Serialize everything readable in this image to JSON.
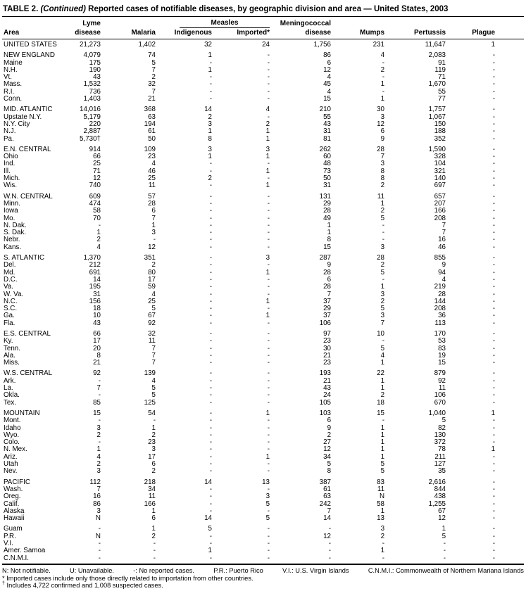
{
  "title": {
    "part1": "TABLE 2. ",
    "continued": "(Continued)",
    "part2": " Reported cases of notifiable diseases, by geographic division and area — United States, 2003"
  },
  "table": {
    "header": {
      "area": "Area",
      "lyme_top": "Lyme",
      "lyme_bottom": "disease",
      "malaria": "Malaria",
      "measles": "Measles",
      "indigenous": "Indigenous",
      "imported": "Imported*",
      "mening_top": "Meningococcal",
      "mening_bottom": "disease",
      "mumps": "Mumps",
      "pertussis": "Pertussis",
      "plague": "Plague"
    },
    "groups": [
      {
        "rows": [
          {
            "area": "UNITED STATES",
            "values": [
              "21,273",
              "1,402",
              "32",
              "24",
              "1,756",
              "231",
              "11,647",
              "1"
            ]
          }
        ]
      },
      {
        "rows": [
          {
            "area": "NEW ENGLAND",
            "values": [
              "4,079",
              "74",
              "1",
              "-",
              "86",
              "4",
              "2,083",
              "-"
            ]
          },
          {
            "area": "Maine",
            "values": [
              "175",
              "5",
              "-",
              "-",
              "6",
              "-",
              "91",
              "-"
            ]
          },
          {
            "area": "N.H.",
            "values": [
              "190",
              "7",
              "1",
              "-",
              "12",
              "2",
              "119",
              "-"
            ]
          },
          {
            "area": "Vt.",
            "values": [
              "43",
              "2",
              "-",
              "-",
              "4",
              "-",
              "71",
              "-"
            ]
          },
          {
            "area": "Mass.",
            "values": [
              "1,532",
              "32",
              "-",
              "-",
              "45",
              "1",
              "1,670",
              "-"
            ]
          },
          {
            "area": "R.I.",
            "values": [
              "736",
              "7",
              "-",
              "-",
              "4",
              "-",
              "55",
              "-"
            ]
          },
          {
            "area": "Conn.",
            "values": [
              "1,403",
              "21",
              "-",
              "-",
              "15",
              "1",
              "77",
              "-"
            ]
          }
        ]
      },
      {
        "rows": [
          {
            "area": "MID. ATLANTIC",
            "values": [
              "14,016",
              "368",
              "14",
              "4",
              "210",
              "30",
              "1,757",
              "-"
            ]
          },
          {
            "area": "Upstate N.Y.",
            "values": [
              "5,179",
              "63",
              "2",
              "-",
              "55",
              "3",
              "1,067",
              "-"
            ]
          },
          {
            "area": "N.Y. City",
            "values": [
              "220",
              "194",
              "3",
              "2",
              "43",
              "12",
              "150",
              "-"
            ]
          },
          {
            "area": "N.J.",
            "values": [
              "2,887",
              "61",
              "1",
              "1",
              "31",
              "6",
              "188",
              "-"
            ]
          },
          {
            "area": "Pa.",
            "values": [
              "5,730†",
              "50",
              "8",
              "1",
              "81",
              "9",
              "352",
              "-"
            ]
          }
        ]
      },
      {
        "rows": [
          {
            "area": "E.N. CENTRAL",
            "values": [
              "914",
              "109",
              "3",
              "3",
              "262",
              "28",
              "1,590",
              "-"
            ]
          },
          {
            "area": "Ohio",
            "values": [
              "66",
              "23",
              "1",
              "1",
              "60",
              "7",
              "328",
              "-"
            ]
          },
          {
            "area": "Ind.",
            "values": [
              "25",
              "4",
              "-",
              "-",
              "48",
              "3",
              "104",
              "-"
            ]
          },
          {
            "area": "Ill.",
            "values": [
              "71",
              "46",
              "-",
              "1",
              "73",
              "8",
              "321",
              "-"
            ]
          },
          {
            "area": "Mich.",
            "values": [
              "12",
              "25",
              "2",
              "-",
              "50",
              "8",
              "140",
              "-"
            ]
          },
          {
            "area": "Wis.",
            "values": [
              "740",
              "11",
              "-",
              "1",
              "31",
              "2",
              "697",
              "-"
            ]
          }
        ]
      },
      {
        "rows": [
          {
            "area": "W.N. CENTRAL",
            "values": [
              "609",
              "57",
              "-",
              "-",
              "131",
              "11",
              "657",
              "-"
            ]
          },
          {
            "area": "Minn.",
            "values": [
              "474",
              "28",
              "-",
              "-",
              "29",
              "1",
              "207",
              "-"
            ]
          },
          {
            "area": "Iowa",
            "values": [
              "58",
              "6",
              "-",
              "-",
              "28",
              "2",
              "166",
              "-"
            ]
          },
          {
            "area": "Mo.",
            "values": [
              "70",
              "7",
              "-",
              "-",
              "49",
              "5",
              "208",
              "-"
            ]
          },
          {
            "area": "N. Dak.",
            "values": [
              "-",
              "1",
              "-",
              "-",
              "1",
              "-",
              "7",
              "-"
            ]
          },
          {
            "area": "S. Dak.",
            "values": [
              "1",
              "3",
              "-",
              "-",
              "1",
              "-",
              "7",
              "-"
            ]
          },
          {
            "area": "Nebr.",
            "values": [
              "2",
              "-",
              "-",
              "-",
              "8",
              "-",
              "16",
              "-"
            ]
          },
          {
            "area": "Kans.",
            "values": [
              "4",
              "12",
              "-",
              "-",
              "15",
              "3",
              "46",
              "-"
            ]
          }
        ]
      },
      {
        "rows": [
          {
            "area": "S. ATLANTIC",
            "values": [
              "1,370",
              "351",
              "-",
              "3",
              "287",
              "28",
              "855",
              "-"
            ]
          },
          {
            "area": "Del.",
            "values": [
              "212",
              "2",
              "-",
              "-",
              "9",
              "2",
              "9",
              "-"
            ]
          },
          {
            "area": "Md.",
            "values": [
              "691",
              "80",
              "-",
              "1",
              "28",
              "5",
              "94",
              "-"
            ]
          },
          {
            "area": "D.C.",
            "values": [
              "14",
              "17",
              "-",
              "-",
              "6",
              "-",
              "4",
              "-"
            ]
          },
          {
            "area": "Va.",
            "values": [
              "195",
              "59",
              "-",
              "-",
              "28",
              "1",
              "219",
              "-"
            ]
          },
          {
            "area": "W. Va.",
            "values": [
              "31",
              "4",
              "-",
              "-",
              "7",
              "3",
              "28",
              "-"
            ]
          },
          {
            "area": "N.C.",
            "values": [
              "156",
              "25",
              "-",
              "1",
              "37",
              "2",
              "144",
              "-"
            ]
          },
          {
            "area": "S.C.",
            "values": [
              "18",
              "5",
              "-",
              "-",
              "29",
              "5",
              "208",
              "-"
            ]
          },
          {
            "area": "Ga.",
            "values": [
              "10",
              "67",
              "-",
              "1",
              "37",
              "3",
              "36",
              "-"
            ]
          },
          {
            "area": "Fla.",
            "values": [
              "43",
              "92",
              "-",
              "-",
              "106",
              "7",
              "113",
              "-"
            ]
          }
        ]
      },
      {
        "rows": [
          {
            "area": "E.S. CENTRAL",
            "values": [
              "66",
              "32",
              "-",
              "-",
              "97",
              "10",
              "170",
              "-"
            ]
          },
          {
            "area": "Ky.",
            "values": [
              "17",
              "11",
              "-",
              "-",
              "23",
              "-",
              "53",
              "-"
            ]
          },
          {
            "area": "Tenn.",
            "values": [
              "20",
              "7",
              "-",
              "-",
              "30",
              "5",
              "83",
              "-"
            ]
          },
          {
            "area": "Ala.",
            "values": [
              "8",
              "7",
              "-",
              "-",
              "21",
              "4",
              "19",
              "-"
            ]
          },
          {
            "area": "Miss.",
            "values": [
              "21",
              "7",
              "-",
              "-",
              "23",
              "1",
              "15",
              "-"
            ]
          }
        ]
      },
      {
        "rows": [
          {
            "area": "W.S. CENTRAL",
            "values": [
              "92",
              "139",
              "-",
              "-",
              "193",
              "22",
              "879",
              "-"
            ]
          },
          {
            "area": "Ark.",
            "values": [
              "-",
              "4",
              "-",
              "-",
              "21",
              "1",
              "92",
              "-"
            ]
          },
          {
            "area": "La.",
            "values": [
              "7",
              "5",
              "-",
              "-",
              "43",
              "1",
              "11",
              "-"
            ]
          },
          {
            "area": "Okla.",
            "values": [
              "-",
              "5",
              "-",
              "-",
              "24",
              "2",
              "106",
              "-"
            ]
          },
          {
            "area": "Tex.",
            "values": [
              "85",
              "125",
              "-",
              "-",
              "105",
              "18",
              "670",
              "-"
            ]
          }
        ]
      },
      {
        "rows": [
          {
            "area": "MOUNTAIN",
            "values": [
              "15",
              "54",
              "-",
              "1",
              "103",
              "15",
              "1,040",
              "1"
            ]
          },
          {
            "area": "Mont.",
            "values": [
              "-",
              "-",
              "-",
              "-",
              "6",
              "-",
              "5",
              "-"
            ]
          },
          {
            "area": "Idaho",
            "values": [
              "3",
              "1",
              "-",
              "-",
              "9",
              "1",
              "82",
              "-"
            ]
          },
          {
            "area": "Wyo.",
            "values": [
              "2",
              "2",
              "-",
              "-",
              "2",
              "1",
              "130",
              "-"
            ]
          },
          {
            "area": "Colo.",
            "values": [
              "-",
              "23",
              "-",
              "-",
              "27",
              "1",
              "372",
              "-"
            ]
          },
          {
            "area": "N. Mex.",
            "values": [
              "1",
              "3",
              "-",
              "-",
              "12",
              "1",
              "78",
              "1"
            ]
          },
          {
            "area": "Ariz.",
            "values": [
              "4",
              "17",
              "-",
              "1",
              "34",
              "1",
              "211",
              "-"
            ]
          },
          {
            "area": "Utah",
            "values": [
              "2",
              "6",
              "-",
              "-",
              "5",
              "5",
              "127",
              "-"
            ]
          },
          {
            "area": "Nev.",
            "values": [
              "3",
              "2",
              "-",
              "-",
              "8",
              "5",
              "35",
              "-"
            ]
          }
        ]
      },
      {
        "rows": [
          {
            "area": "PACIFIC",
            "values": [
              "112",
              "218",
              "14",
              "13",
              "387",
              "83",
              "2,616",
              "-"
            ]
          },
          {
            "area": "Wash.",
            "values": [
              "7",
              "34",
              "-",
              "-",
              "61",
              "11",
              "844",
              "-"
            ]
          },
          {
            "area": "Oreg.",
            "values": [
              "16",
              "11",
              "-",
              "3",
              "63",
              "N",
              "438",
              "-"
            ]
          },
          {
            "area": "Calif.",
            "values": [
              "86",
              "166",
              "-",
              "5",
              "242",
              "58",
              "1,255",
              "-"
            ]
          },
          {
            "area": "Alaska",
            "values": [
              "3",
              "1",
              "-",
              "-",
              "7",
              "1",
              "67",
              "-"
            ]
          },
          {
            "area": "Hawaii",
            "values": [
              "N",
              "6",
              "14",
              "5",
              "14",
              "13",
              "12",
              "-"
            ]
          }
        ]
      },
      {
        "rows": [
          {
            "area": "Guam",
            "values": [
              "-",
              "1",
              "5",
              "-",
              "-",
              "3",
              "1",
              "-"
            ]
          },
          {
            "area": "P.R.",
            "values": [
              "N",
              "2",
              "-",
              "-",
              "12",
              "2",
              "5",
              "-"
            ]
          },
          {
            "area": "V.I.",
            "values": [
              "-",
              "-",
              "-",
              "-",
              "-",
              "-",
              "-",
              "-"
            ]
          },
          {
            "area": "Amer. Samoa",
            "values": [
              "-",
              "-",
              "1",
              "-",
              "-",
              "1",
              "-",
              "-"
            ]
          },
          {
            "area": "C.N.M.I.",
            "values": [
              "-",
              "-",
              "-",
              "-",
              "-",
              "-",
              "-",
              "-"
            ]
          }
        ]
      }
    ]
  },
  "footnotes": {
    "legend": [
      "N: Not notifiable.",
      "U: Unavailable.",
      "-: No reported cases.",
      "P.R.: Puerto Rico",
      "V.I.: U.S. Virgin Islands",
      "C.N.M.I.: Commonwealth of Northern Mariana Islands"
    ],
    "imported_marker": "*",
    "imported_text": " Imported cases include only those directly related to importation from other countries.",
    "pa_marker": "†",
    "pa_text": " Includes 4,722 confirmed and 1,008 suspected cases."
  }
}
